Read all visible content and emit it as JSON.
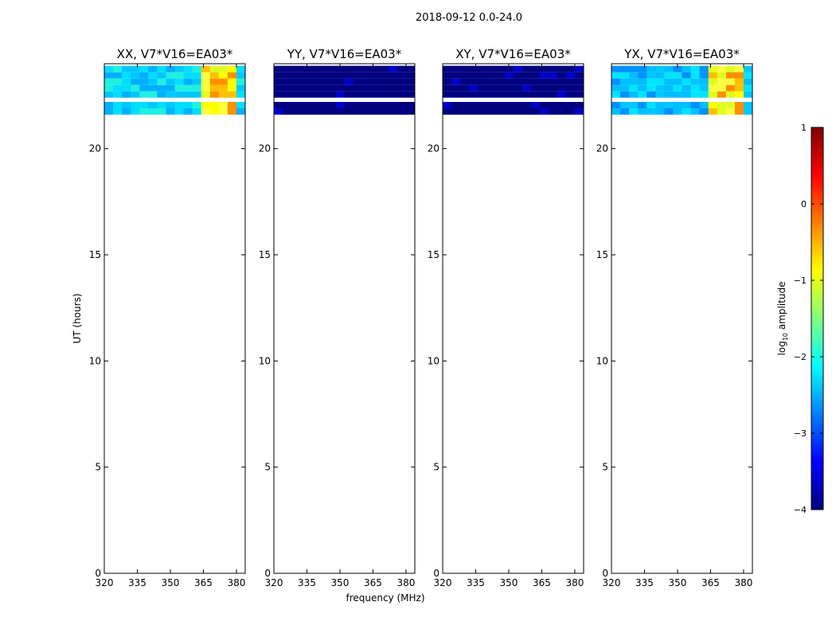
{
  "figure": {
    "suptitle": "2018-09-12 0.0-24.0",
    "colorbar_label_prefix": "log",
    "colorbar_label_sub": "10",
    "colorbar_label_suffix": " amplitude"
  },
  "chart_data": [
    {
      "type": "heatmap",
      "title": "XX, V7*V16=EA03*",
      "xlabel": "",
      "ylabel": "UT (hours)",
      "xlim": [
        320,
        384
      ],
      "ylim": [
        0,
        24
      ],
      "x_ticks": [
        "320",
        "335",
        "350",
        "365",
        "380"
      ],
      "y_ticks": [
        "0",
        "5",
        "10",
        "15",
        "20"
      ],
      "data_rows_ut": [
        [
          23.3,
          23.6,
          "bright"
        ],
        [
          23.6,
          23.9,
          "bright"
        ],
        [
          22.4,
          22.7,
          "bright"
        ],
        [
          22.7,
          23.0,
          "bright"
        ],
        [
          23.0,
          23.3,
          "bright"
        ],
        [
          21.6,
          21.9,
          "bright"
        ],
        [
          21.9,
          22.2,
          "bright"
        ]
      ],
      "band_profile": "low-mid cyan, high 362-381 MHz yellow/orange"
    },
    {
      "type": "heatmap",
      "title": "YY, V7*V16=EA03*",
      "xlabel": "frequency (MHz)",
      "ylabel": "",
      "xlim": [
        320,
        384
      ],
      "ylim": [
        0,
        24
      ],
      "x_ticks": [
        "320",
        "335",
        "350",
        "365",
        "380"
      ],
      "y_ticks": [
        "0",
        "5",
        "10",
        "15",
        "20"
      ],
      "data_rows_ut": [
        [
          23.3,
          23.6,
          "low"
        ],
        [
          23.6,
          23.9,
          "low"
        ],
        [
          22.4,
          22.7,
          "low"
        ],
        [
          22.7,
          23.0,
          "low"
        ],
        [
          23.0,
          23.3,
          "low"
        ],
        [
          21.6,
          21.9,
          "low"
        ],
        [
          21.9,
          22.2,
          "low"
        ]
      ],
      "band_profile": "uniform dark navy"
    },
    {
      "type": "heatmap",
      "title": "XY, V7*V16=EA03*",
      "xlabel": "",
      "ylabel": "",
      "xlim": [
        320,
        384
      ],
      "ylim": [
        0,
        24
      ],
      "x_ticks": [
        "320",
        "335",
        "350",
        "365",
        "380"
      ],
      "y_ticks": [
        "0",
        "5",
        "10",
        "15",
        "20"
      ],
      "data_rows_ut": [
        [
          23.3,
          23.6,
          "low"
        ],
        [
          23.6,
          23.9,
          "low"
        ],
        [
          22.4,
          22.7,
          "low"
        ],
        [
          22.7,
          23.0,
          "low"
        ],
        [
          23.0,
          23.3,
          "low"
        ],
        [
          21.6,
          21.9,
          "low"
        ],
        [
          21.9,
          22.2,
          "low"
        ]
      ],
      "band_profile": "uniform dark navy"
    },
    {
      "type": "heatmap",
      "title": "YX, V7*V16=EA03*",
      "xlabel": "",
      "ylabel": "",
      "xlim": [
        320,
        384
      ],
      "ylim": [
        0,
        24
      ],
      "x_ticks": [
        "320",
        "335",
        "350",
        "365",
        "380"
      ],
      "y_ticks": [
        "0",
        "5",
        "10",
        "15",
        "20"
      ],
      "data_rows_ut": [
        [
          23.3,
          23.6,
          "bright"
        ],
        [
          23.6,
          23.9,
          "bright"
        ],
        [
          22.4,
          22.7,
          "bright"
        ],
        [
          22.7,
          23.0,
          "bright"
        ],
        [
          23.0,
          23.3,
          "bright"
        ],
        [
          21.6,
          21.9,
          "bright"
        ],
        [
          21.9,
          22.2,
          "bright"
        ]
      ],
      "band_profile": "low-mid cyan/blue, high 362-381 MHz yellow/orange"
    }
  ],
  "colorbar": {
    "type": "colorbar",
    "range": [
      -4,
      1
    ],
    "ticks": [
      "1",
      "0",
      "−1",
      "−2",
      "−3",
      "−4"
    ],
    "tick_values": [
      1,
      0,
      -1,
      -2,
      -3,
      -4
    ],
    "colormap": "jet",
    "colors": [
      "#00007f",
      "#0000ff",
      "#007fff",
      "#00ffff",
      "#7fff7f",
      "#ffff00",
      "#ff7f00",
      "#ff0000",
      "#7f0000"
    ]
  }
}
